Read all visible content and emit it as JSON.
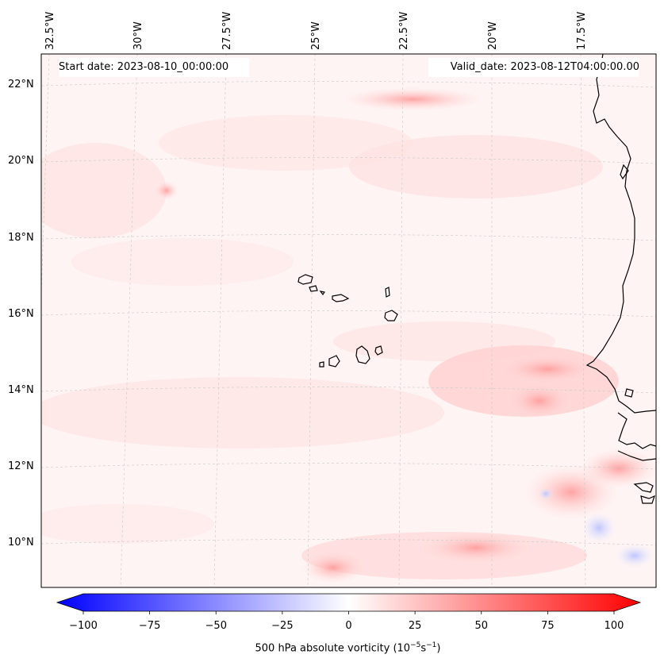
{
  "header": {
    "start_date": "Start date: 2023-08-10_00:00:00",
    "valid_date": "Valid_date: 2023-08-12T04:00:00.00"
  },
  "longitude_labels": [
    "32.5°W",
    "30°W",
    "27.5°W",
    "25°W",
    "22.5°W",
    "20°W",
    "17.5°W"
  ],
  "latitude_labels": [
    "22°N",
    "20°N",
    "18°N",
    "16°N",
    "14°N",
    "12°N",
    "10°N"
  ],
  "colorbar": {
    "ticks": [
      "−100",
      "−75",
      "−50",
      "−25",
      "0",
      "25",
      "50",
      "75",
      "100"
    ],
    "range": [
      -100,
      100
    ],
    "label": "500 hPa absolute vorticity (10",
    "label_exp1": "−5",
    "label_mid": "s",
    "label_exp2": "−1",
    "label_end": ")",
    "low_color": "#0000ff",
    "mid_color": "#ffffff",
    "high_color": "#ff0000"
  },
  "map": {
    "extent_lon": [
      -32.5,
      -15.5
    ],
    "extent_lat": [
      9,
      22.8
    ],
    "land_color": "#000000",
    "gridline_color": "#c8c8c8"
  }
}
